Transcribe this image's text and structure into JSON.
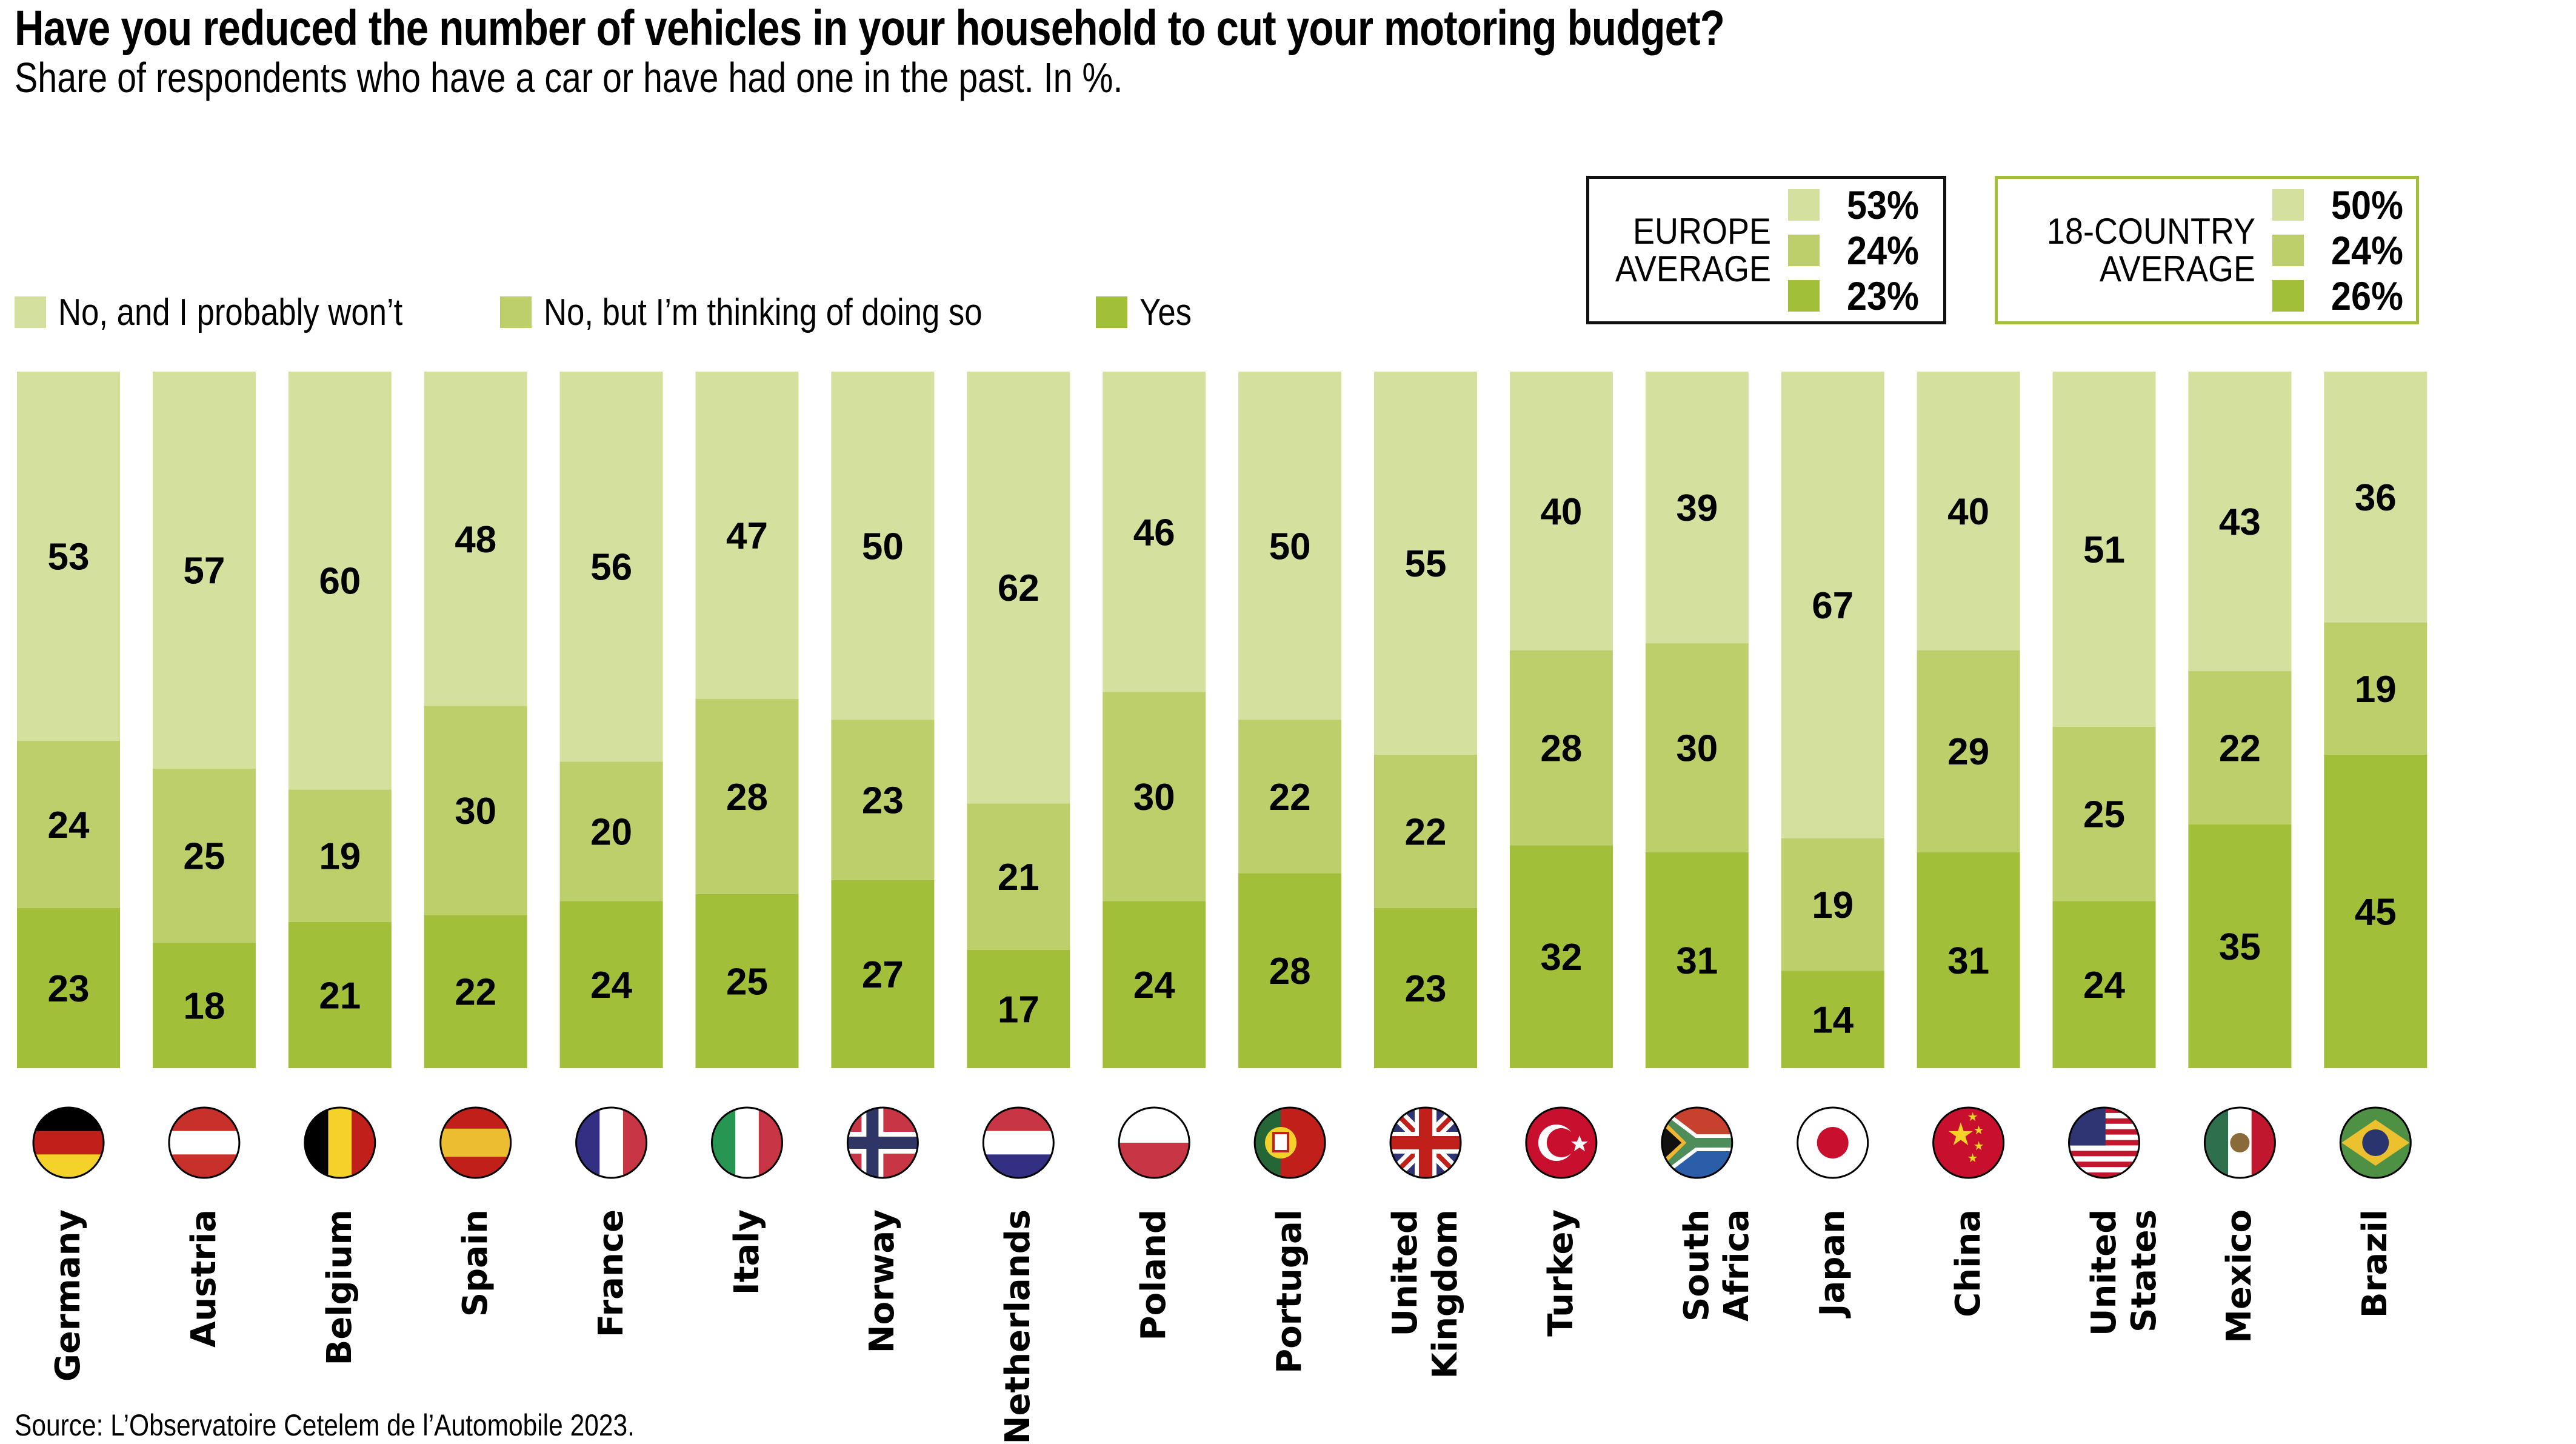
{
  "chart_data": {
    "type": "bar",
    "stacked": true,
    "title": "Have you reduced the number of vehicles in your household to cut your motoring budget?",
    "subtitle": "Share of respondents who have a car or have had one in the past. In %.",
    "xlabel": "",
    "ylabel": "",
    "ylim": [
      0,
      100
    ],
    "grid": false,
    "legend_position": "top-left",
    "categories": [
      "Germany",
      "Austria",
      "Belgium",
      "Spain",
      "France",
      "Italy",
      "Norway",
      "Netherlands",
      "Poland",
      "Portugal",
      "United\nKingdom",
      "Turkey",
      "South Africa",
      "Japan",
      "China",
      "United States",
      "Mexico",
      "Brazil"
    ],
    "series": [
      {
        "name": "Yes",
        "color": "#a1bf38",
        "values": [
          23,
          18,
          21,
          22,
          24,
          25,
          27,
          17,
          24,
          28,
          23,
          32,
          31,
          14,
          31,
          24,
          35,
          45
        ]
      },
      {
        "name": "No, but I’m thinking of doing so",
        "color": "#bdcf6b",
        "values": [
          24,
          25,
          19,
          30,
          20,
          28,
          23,
          21,
          30,
          22,
          22,
          28,
          30,
          19,
          29,
          25,
          22,
          19
        ]
      },
      {
        "name": "No, and I probably won’t",
        "color": "#d3e09e",
        "values": [
          53,
          57,
          60,
          48,
          56,
          47,
          50,
          62,
          46,
          50,
          55,
          40,
          39,
          67,
          40,
          51,
          43,
          36
        ]
      }
    ],
    "legend": [
      {
        "label": "No, and I probably won’t",
        "color": "#d3e09e"
      },
      {
        "label": "No, but I’m thinking of doing so",
        "color": "#bdcf6b"
      },
      {
        "label": "Yes",
        "color": "#a1bf38"
      }
    ],
    "averages": [
      {
        "title": "EUROPE\nAVERAGE",
        "border_color": "#111111",
        "rows": [
          {
            "value": "53%",
            "color": "#d3e09e"
          },
          {
            "value": "24%",
            "color": "#bdcf6b"
          },
          {
            "value": "23%",
            "color": "#a1bf38"
          }
        ]
      },
      {
        "title": "18-COUNTRY\nAVERAGE",
        "border_color": "#a1bf38",
        "rows": [
          {
            "value": "50%",
            "color": "#d3e09e"
          },
          {
            "value": "24%",
            "color": "#bdcf6b"
          },
          {
            "value": "26%",
            "color": "#a1bf38"
          }
        ]
      }
    ],
    "flags": [
      "germany-flag",
      "austria-flag",
      "belgium-flag",
      "spain-flag",
      "france-flag",
      "italy-flag",
      "norway-flag",
      "netherlands-flag",
      "poland-flag",
      "portugal-flag",
      "united-kingdom-flag",
      "turkey-flag",
      "south-africa-flag",
      "japan-flag",
      "china-flag",
      "united-states-flag",
      "mexico-flag",
      "brazil-flag"
    ],
    "source": "Source: L’Observatoire Cetelem de l’Automobile 2023."
  }
}
